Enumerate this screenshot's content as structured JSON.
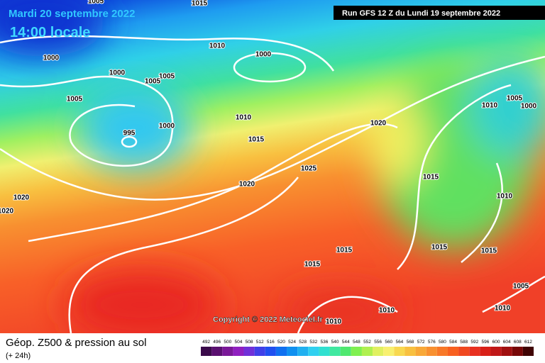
{
  "header": {
    "date": "Mardi 20 septembre 2022",
    "time": "14:00 locale",
    "run": "Run GFS 12 Z du Lundi 19 septembre 2022"
  },
  "copyright": "Copyright © 2022 Meteociel.fr",
  "legend": {
    "title": "Géop. Z500 & pression au sol",
    "subtitle": "(+ 24h)",
    "values": [
      492,
      496,
      500,
      504,
      508,
      512,
      516,
      520,
      524,
      528,
      532,
      536,
      540,
      544,
      548,
      552,
      556,
      560,
      564,
      568,
      572,
      576,
      580,
      584,
      588,
      592,
      596,
      600,
      604,
      608,
      612
    ],
    "colors": [
      "#3a0a4a",
      "#5a1070",
      "#7a1898",
      "#9020c0",
      "#7030d8",
      "#4040e8",
      "#2050f0",
      "#1070f0",
      "#1090f0",
      "#20b0f0",
      "#30d0f0",
      "#30e0d0",
      "#40e8a0",
      "#50e870",
      "#80f050",
      "#b0f050",
      "#e0f060",
      "#f8f070",
      "#f8d850",
      "#f8c040",
      "#f8a838",
      "#f89030",
      "#f87828",
      "#f86020",
      "#f04820",
      "#e83020",
      "#d82018",
      "#c01818",
      "#a01010",
      "#780808",
      "#400404"
    ]
  },
  "isobar_labels": [
    1015,
    1005,
    1010,
    1000,
    1000,
    1000,
    1005,
    1005,
    1005,
    995,
    1000,
    1010,
    1015,
    1020,
    1025,
    1020,
    1020,
    1020,
    1015,
    1010,
    1010,
    1005,
    1000,
    1015,
    1015,
    1015,
    1015,
    1005,
    1010,
    1010,
    1010
  ]
}
